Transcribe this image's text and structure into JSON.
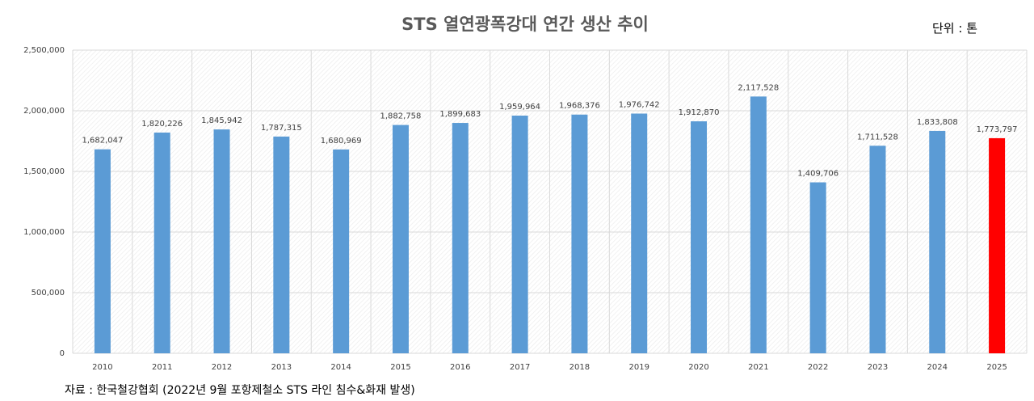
{
  "chart_data": {
    "type": "bar",
    "title": "STS 열연광폭강대 연간 생산 추이",
    "unit_label": "단위 : 톤",
    "source_note": "자료 : 한국철강협회 (2022년 9월 포항제철소 STS 라인 침수&화재 발생)",
    "categories": [
      "2010",
      "2011",
      "2012",
      "2013",
      "2014",
      "2015",
      "2016",
      "2017",
      "2018",
      "2019",
      "2020",
      "2021",
      "2022",
      "2023",
      "2024",
      "2025"
    ],
    "values": [
      1682047,
      1820226,
      1845942,
      1787315,
      1680969,
      1882758,
      1899683,
      1959964,
      1968376,
      1976742,
      1912870,
      2117528,
      1409706,
      1711528,
      1833808,
      1773797
    ],
    "data_labels": [
      "1,682,047",
      "1,820,226",
      "1,845,942",
      "1,787,315",
      "1,680,969",
      "1,882,758",
      "1,899,683",
      "1,959,964",
      "1,968,376",
      "1,976,742",
      "1,912,870",
      "2,117,528",
      "1,409,706",
      "1,711,528",
      "1,833,808",
      "1,773,797"
    ],
    "highlight_index": 15,
    "ylim": [
      0,
      2500000
    ],
    "yticks": [
      0,
      500000,
      1000000,
      1500000,
      2000000,
      2500000
    ],
    "ytick_labels": [
      "0",
      "500,000",
      "1,000,000",
      "1,500,000",
      "2,000,000",
      "2,500,000"
    ],
    "xlabel": "",
    "ylabel": "",
    "grid": true,
    "legend": "none",
    "colors": {
      "bar": "#5B9BD5",
      "highlight": "#FF0000",
      "label": "#404040",
      "grid": "#D9D9D9"
    }
  }
}
